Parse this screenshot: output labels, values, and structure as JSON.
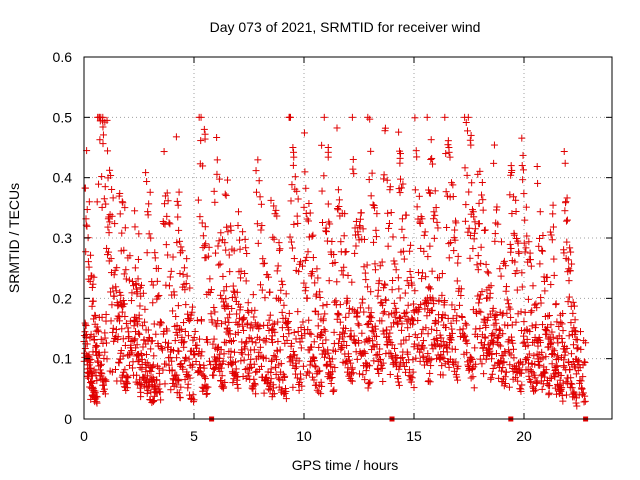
{
  "chart_data": {
    "type": "scatter",
    "title": "Day 073 of 2021, SRMTID for receiver wind",
    "xlabel": "GPS time / hours",
    "ylabel": "SRMTID / TECUs",
    "xlim": [
      0,
      24
    ],
    "ylim": [
      0,
      0.6
    ],
    "x_ticks": [
      0,
      5,
      10,
      15,
      20
    ],
    "y_ticks": [
      0,
      0.1,
      0.2,
      0.3,
      0.4,
      0.5,
      0.6
    ],
    "x_tick_labels": [
      "0",
      "5",
      "10",
      "15",
      "20"
    ],
    "y_tick_labels": [
      "0",
      "0.1",
      "0.2",
      "0.3",
      "0.4",
      "0.5",
      "0.6"
    ],
    "grid": true,
    "marker": "plus",
    "color": "#e00000",
    "data_gaps_hours": [
      5.8,
      14.0,
      19.4,
      22.8
    ],
    "series": [
      {
        "name": "SRMTID",
        "x_range": [
          0.0,
          22.8
        ],
        "note": "Dense scatter of many satellite tracks; each track begins high and decays toward ~0.04 TECU. Values span ~0.02 to 0.5 TECU.",
        "peaks": [
          {
            "x": 0.9,
            "y": 0.5
          },
          {
            "x": 5.5,
            "y": 0.48
          },
          {
            "x": 9.5,
            "y": 0.45
          },
          {
            "x": 11.1,
            "y": 0.45
          },
          {
            "x": 14.4,
            "y": 0.44
          },
          {
            "x": 16.6,
            "y": 0.45
          },
          {
            "x": 17.6,
            "y": 0.47
          },
          {
            "x": 19.4,
            "y": 0.42
          }
        ],
        "tracks": [
          {
            "x0": 0.05,
            "x1": 1.0,
            "y0": 0.38,
            "y1": 0.05
          },
          {
            "x0": 0.0,
            "x1": 0.6,
            "y0": 0.15,
            "y1": 0.03
          },
          {
            "x0": 0.6,
            "x1": 2.0,
            "y0": 0.5,
            "y1": 0.06
          },
          {
            "x0": 1.0,
            "x1": 2.6,
            "y0": 0.41,
            "y1": 0.05
          },
          {
            "x0": 1.6,
            "x1": 3.2,
            "y0": 0.36,
            "y1": 0.03
          },
          {
            "x0": 2.3,
            "x1": 3.5,
            "y0": 0.3,
            "y1": 0.04
          },
          {
            "x0": 2.8,
            "x1": 4.4,
            "y0": 0.35,
            "y1": 0.05
          },
          {
            "x0": 3.6,
            "x1": 5.0,
            "y0": 0.36,
            "y1": 0.04
          },
          {
            "x0": 4.2,
            "x1": 5.6,
            "y0": 0.37,
            "y1": 0.05
          },
          {
            "x0": 5.2,
            "x1": 6.4,
            "y0": 0.48,
            "y1": 0.05
          },
          {
            "x0": 5.9,
            "x1": 7.0,
            "y0": 0.43,
            "y1": 0.07
          },
          {
            "x0": 6.4,
            "x1": 7.8,
            "y0": 0.35,
            "y1": 0.06
          },
          {
            "x0": 7.0,
            "x1": 8.6,
            "y0": 0.33,
            "y1": 0.05
          },
          {
            "x0": 7.8,
            "x1": 9.2,
            "y0": 0.39,
            "y1": 0.04
          },
          {
            "x0": 8.5,
            "x1": 9.9,
            "y0": 0.36,
            "y1": 0.06
          },
          {
            "x0": 9.3,
            "x1": 10.8,
            "y0": 0.45,
            "y1": 0.05
          },
          {
            "x0": 10.0,
            "x1": 11.4,
            "y0": 0.38,
            "y1": 0.06
          },
          {
            "x0": 10.8,
            "x1": 12.2,
            "y0": 0.45,
            "y1": 0.07
          },
          {
            "x0": 11.5,
            "x1": 13.0,
            "y0": 0.38,
            "y1": 0.07
          },
          {
            "x0": 12.2,
            "x1": 13.6,
            "y0": 0.43,
            "y1": 0.08
          },
          {
            "x0": 12.9,
            "x1": 14.4,
            "y0": 0.42,
            "y1": 0.07
          },
          {
            "x0": 13.6,
            "x1": 15.0,
            "y0": 0.44,
            "y1": 0.06
          },
          {
            "x0": 14.3,
            "x1": 15.8,
            "y0": 0.38,
            "y1": 0.08
          },
          {
            "x0": 15.0,
            "x1": 16.4,
            "y0": 0.4,
            "y1": 0.1
          },
          {
            "x0": 15.6,
            "x1": 17.0,
            "y0": 0.43,
            "y1": 0.07
          },
          {
            "x0": 16.4,
            "x1": 17.8,
            "y0": 0.45,
            "y1": 0.07
          },
          {
            "x0": 17.3,
            "x1": 18.6,
            "y0": 0.47,
            "y1": 0.08
          },
          {
            "x0": 17.9,
            "x1": 19.2,
            "y0": 0.39,
            "y1": 0.06
          },
          {
            "x0": 18.6,
            "x1": 19.9,
            "y0": 0.4,
            "y1": 0.06
          },
          {
            "x0": 19.3,
            "x1": 20.6,
            "y0": 0.42,
            "y1": 0.05
          },
          {
            "x0": 19.9,
            "x1": 21.2,
            "y0": 0.36,
            "y1": 0.05
          },
          {
            "x0": 20.6,
            "x1": 21.8,
            "y0": 0.34,
            "y1": 0.04
          },
          {
            "x0": 21.2,
            "x1": 22.4,
            "y0": 0.32,
            "y1": 0.03
          },
          {
            "x0": 21.8,
            "x1": 22.8,
            "y0": 0.38,
            "y1": 0.03
          }
        ]
      }
    ]
  }
}
